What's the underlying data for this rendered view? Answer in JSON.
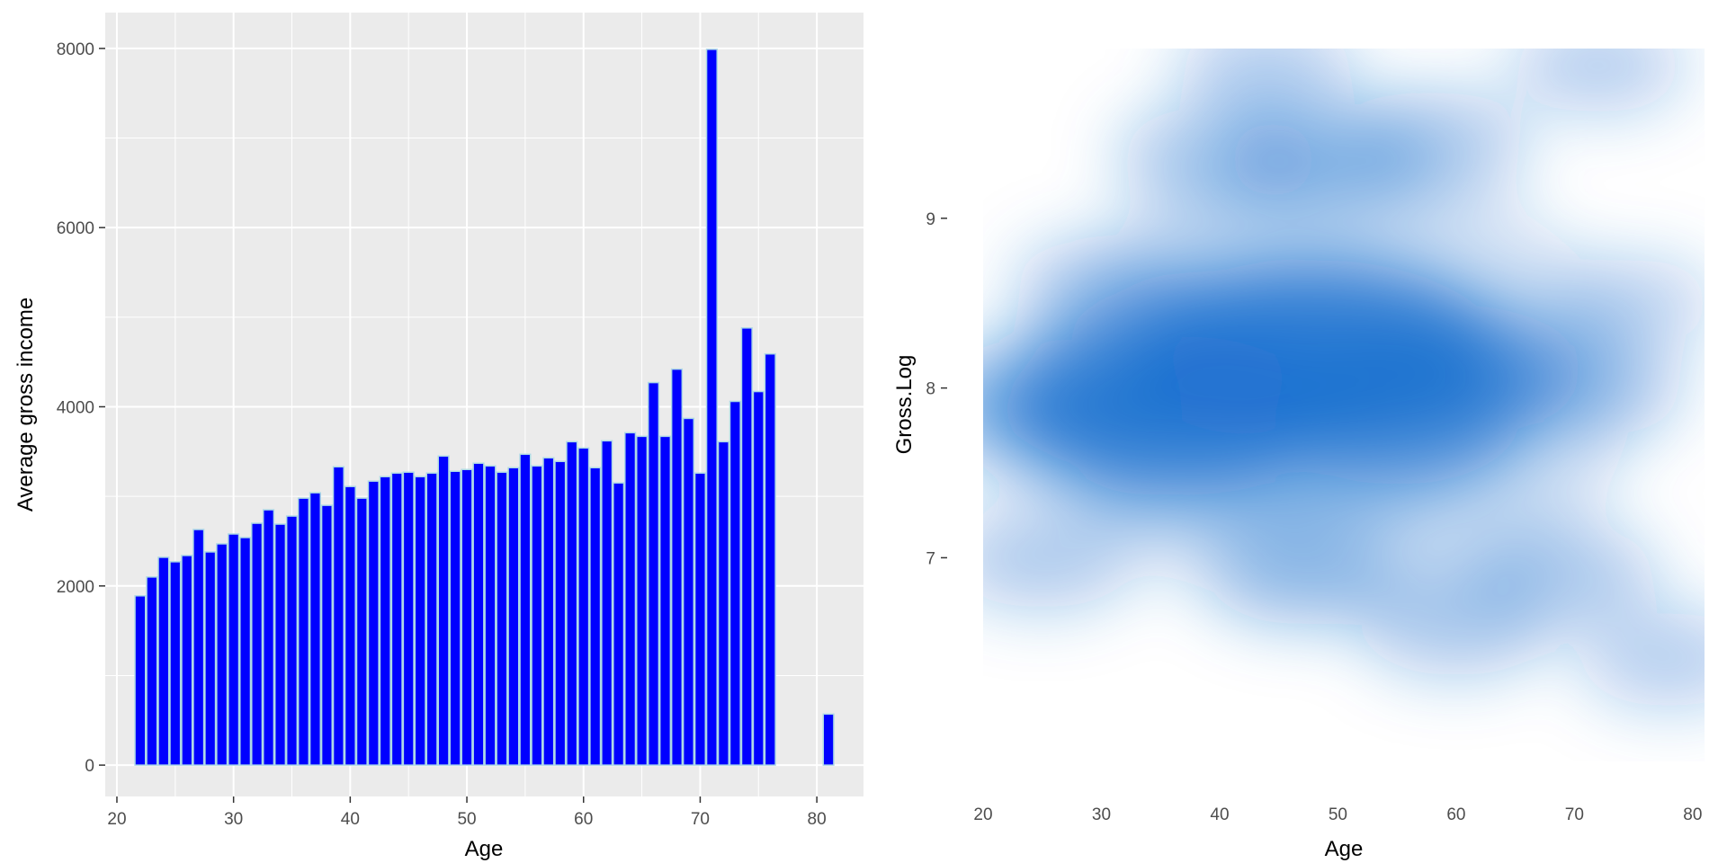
{
  "chart_data": [
    {
      "type": "bar",
      "xlabel": "Age",
      "ylabel": "Average gross income",
      "xlim": [
        19,
        84
      ],
      "ylim": [
        -350,
        8400
      ],
      "xticks": [
        20,
        30,
        40,
        50,
        60,
        70,
        80
      ],
      "yticks": [
        0,
        2000,
        4000,
        6000,
        8000
      ],
      "grid": true,
      "panel_background": "#ebebeb",
      "bar_fill": "#0000ff",
      "bar_outline": "#add8e6",
      "bars": [
        {
          "x": 22,
          "y": 1890
        },
        {
          "x": 23,
          "y": 2100
        },
        {
          "x": 24,
          "y": 2320
        },
        {
          "x": 25,
          "y": 2270
        },
        {
          "x": 26,
          "y": 2340
        },
        {
          "x": 27,
          "y": 2630
        },
        {
          "x": 28,
          "y": 2380
        },
        {
          "x": 29,
          "y": 2470
        },
        {
          "x": 30,
          "y": 2580
        },
        {
          "x": 31,
          "y": 2540
        },
        {
          "x": 32,
          "y": 2700
        },
        {
          "x": 33,
          "y": 2850
        },
        {
          "x": 34,
          "y": 2690
        },
        {
          "x": 35,
          "y": 2780
        },
        {
          "x": 36,
          "y": 2980
        },
        {
          "x": 37,
          "y": 3040
        },
        {
          "x": 38,
          "y": 2900
        },
        {
          "x": 39,
          "y": 3330
        },
        {
          "x": 40,
          "y": 3110
        },
        {
          "x": 41,
          "y": 2980
        },
        {
          "x": 42,
          "y": 3170
        },
        {
          "x": 43,
          "y": 3220
        },
        {
          "x": 44,
          "y": 3260
        },
        {
          "x": 45,
          "y": 3270
        },
        {
          "x": 46,
          "y": 3220
        },
        {
          "x": 47,
          "y": 3260
        },
        {
          "x": 48,
          "y": 3450
        },
        {
          "x": 49,
          "y": 3280
        },
        {
          "x": 50,
          "y": 3300
        },
        {
          "x": 51,
          "y": 3370
        },
        {
          "x": 52,
          "y": 3340
        },
        {
          "x": 53,
          "y": 3270
        },
        {
          "x": 54,
          "y": 3320
        },
        {
          "x": 55,
          "y": 3470
        },
        {
          "x": 56,
          "y": 3340
        },
        {
          "x": 57,
          "y": 3430
        },
        {
          "x": 58,
          "y": 3390
        },
        {
          "x": 59,
          "y": 3610
        },
        {
          "x": 60,
          "y": 3540
        },
        {
          "x": 61,
          "y": 3320
        },
        {
          "x": 62,
          "y": 3620
        },
        {
          "x": 63,
          "y": 3150
        },
        {
          "x": 64,
          "y": 3710
        },
        {
          "x": 65,
          "y": 3670
        },
        {
          "x": 66,
          "y": 4270
        },
        {
          "x": 67,
          "y": 3670
        },
        {
          "x": 68,
          "y": 4420
        },
        {
          "x": 69,
          "y": 3870
        },
        {
          "x": 70,
          "y": 3260
        },
        {
          "x": 71,
          "y": 7990
        },
        {
          "x": 72,
          "y": 3610
        },
        {
          "x": 73,
          "y": 4060
        },
        {
          "x": 74,
          "y": 4880
        },
        {
          "x": 75,
          "y": 4170
        },
        {
          "x": 76,
          "y": 4590
        },
        {
          "x": 81,
          "y": 570
        }
      ]
    },
    {
      "type": "heatmap",
      "subtype": "2d-density",
      "xlabel": "Age",
      "ylabel": "Gross.Log",
      "xlim": [
        20,
        81
      ],
      "ylim": [
        5.8,
        10.0
      ],
      "xticks": [
        20,
        30,
        40,
        50,
        60,
        70,
        80
      ],
      "yticks": [
        7,
        8,
        9
      ],
      "grid": false,
      "color_low": "#ffffff",
      "color_high": "#1a6fcf",
      "density_peaks": [
        {
          "x": 48,
          "y": 8.2,
          "weight": 1.0
        },
        {
          "x": 35,
          "y": 7.85,
          "weight": 0.8
        },
        {
          "x": 60,
          "y": 8.1,
          "weight": 0.55
        },
        {
          "x": 26,
          "y": 7.9,
          "weight": 0.55
        },
        {
          "x": 42,
          "y": 8.0,
          "weight": 0.6
        },
        {
          "x": 55,
          "y": 7.8,
          "weight": 0.5
        },
        {
          "x": 40,
          "y": 9.35,
          "weight": 0.35
        },
        {
          "x": 49,
          "y": 9.35,
          "weight": 0.35
        },
        {
          "x": 58,
          "y": 9.45,
          "weight": 0.3
        },
        {
          "x": 25,
          "y": 7.0,
          "weight": 0.3
        },
        {
          "x": 47,
          "y": 6.9,
          "weight": 0.3
        },
        {
          "x": 69,
          "y": 6.9,
          "weight": 0.3
        },
        {
          "x": 60,
          "y": 6.6,
          "weight": 0.3
        },
        {
          "x": 78,
          "y": 6.4,
          "weight": 0.25
        },
        {
          "x": 44,
          "y": 9.9,
          "weight": 0.25
        },
        {
          "x": 72,
          "y": 9.9,
          "weight": 0.25
        },
        {
          "x": 30,
          "y": 8.6,
          "weight": 0.25
        },
        {
          "x": 72,
          "y": 8.0,
          "weight": 0.25
        },
        {
          "x": 75,
          "y": 8.5,
          "weight": 0.2
        }
      ]
    }
  ]
}
